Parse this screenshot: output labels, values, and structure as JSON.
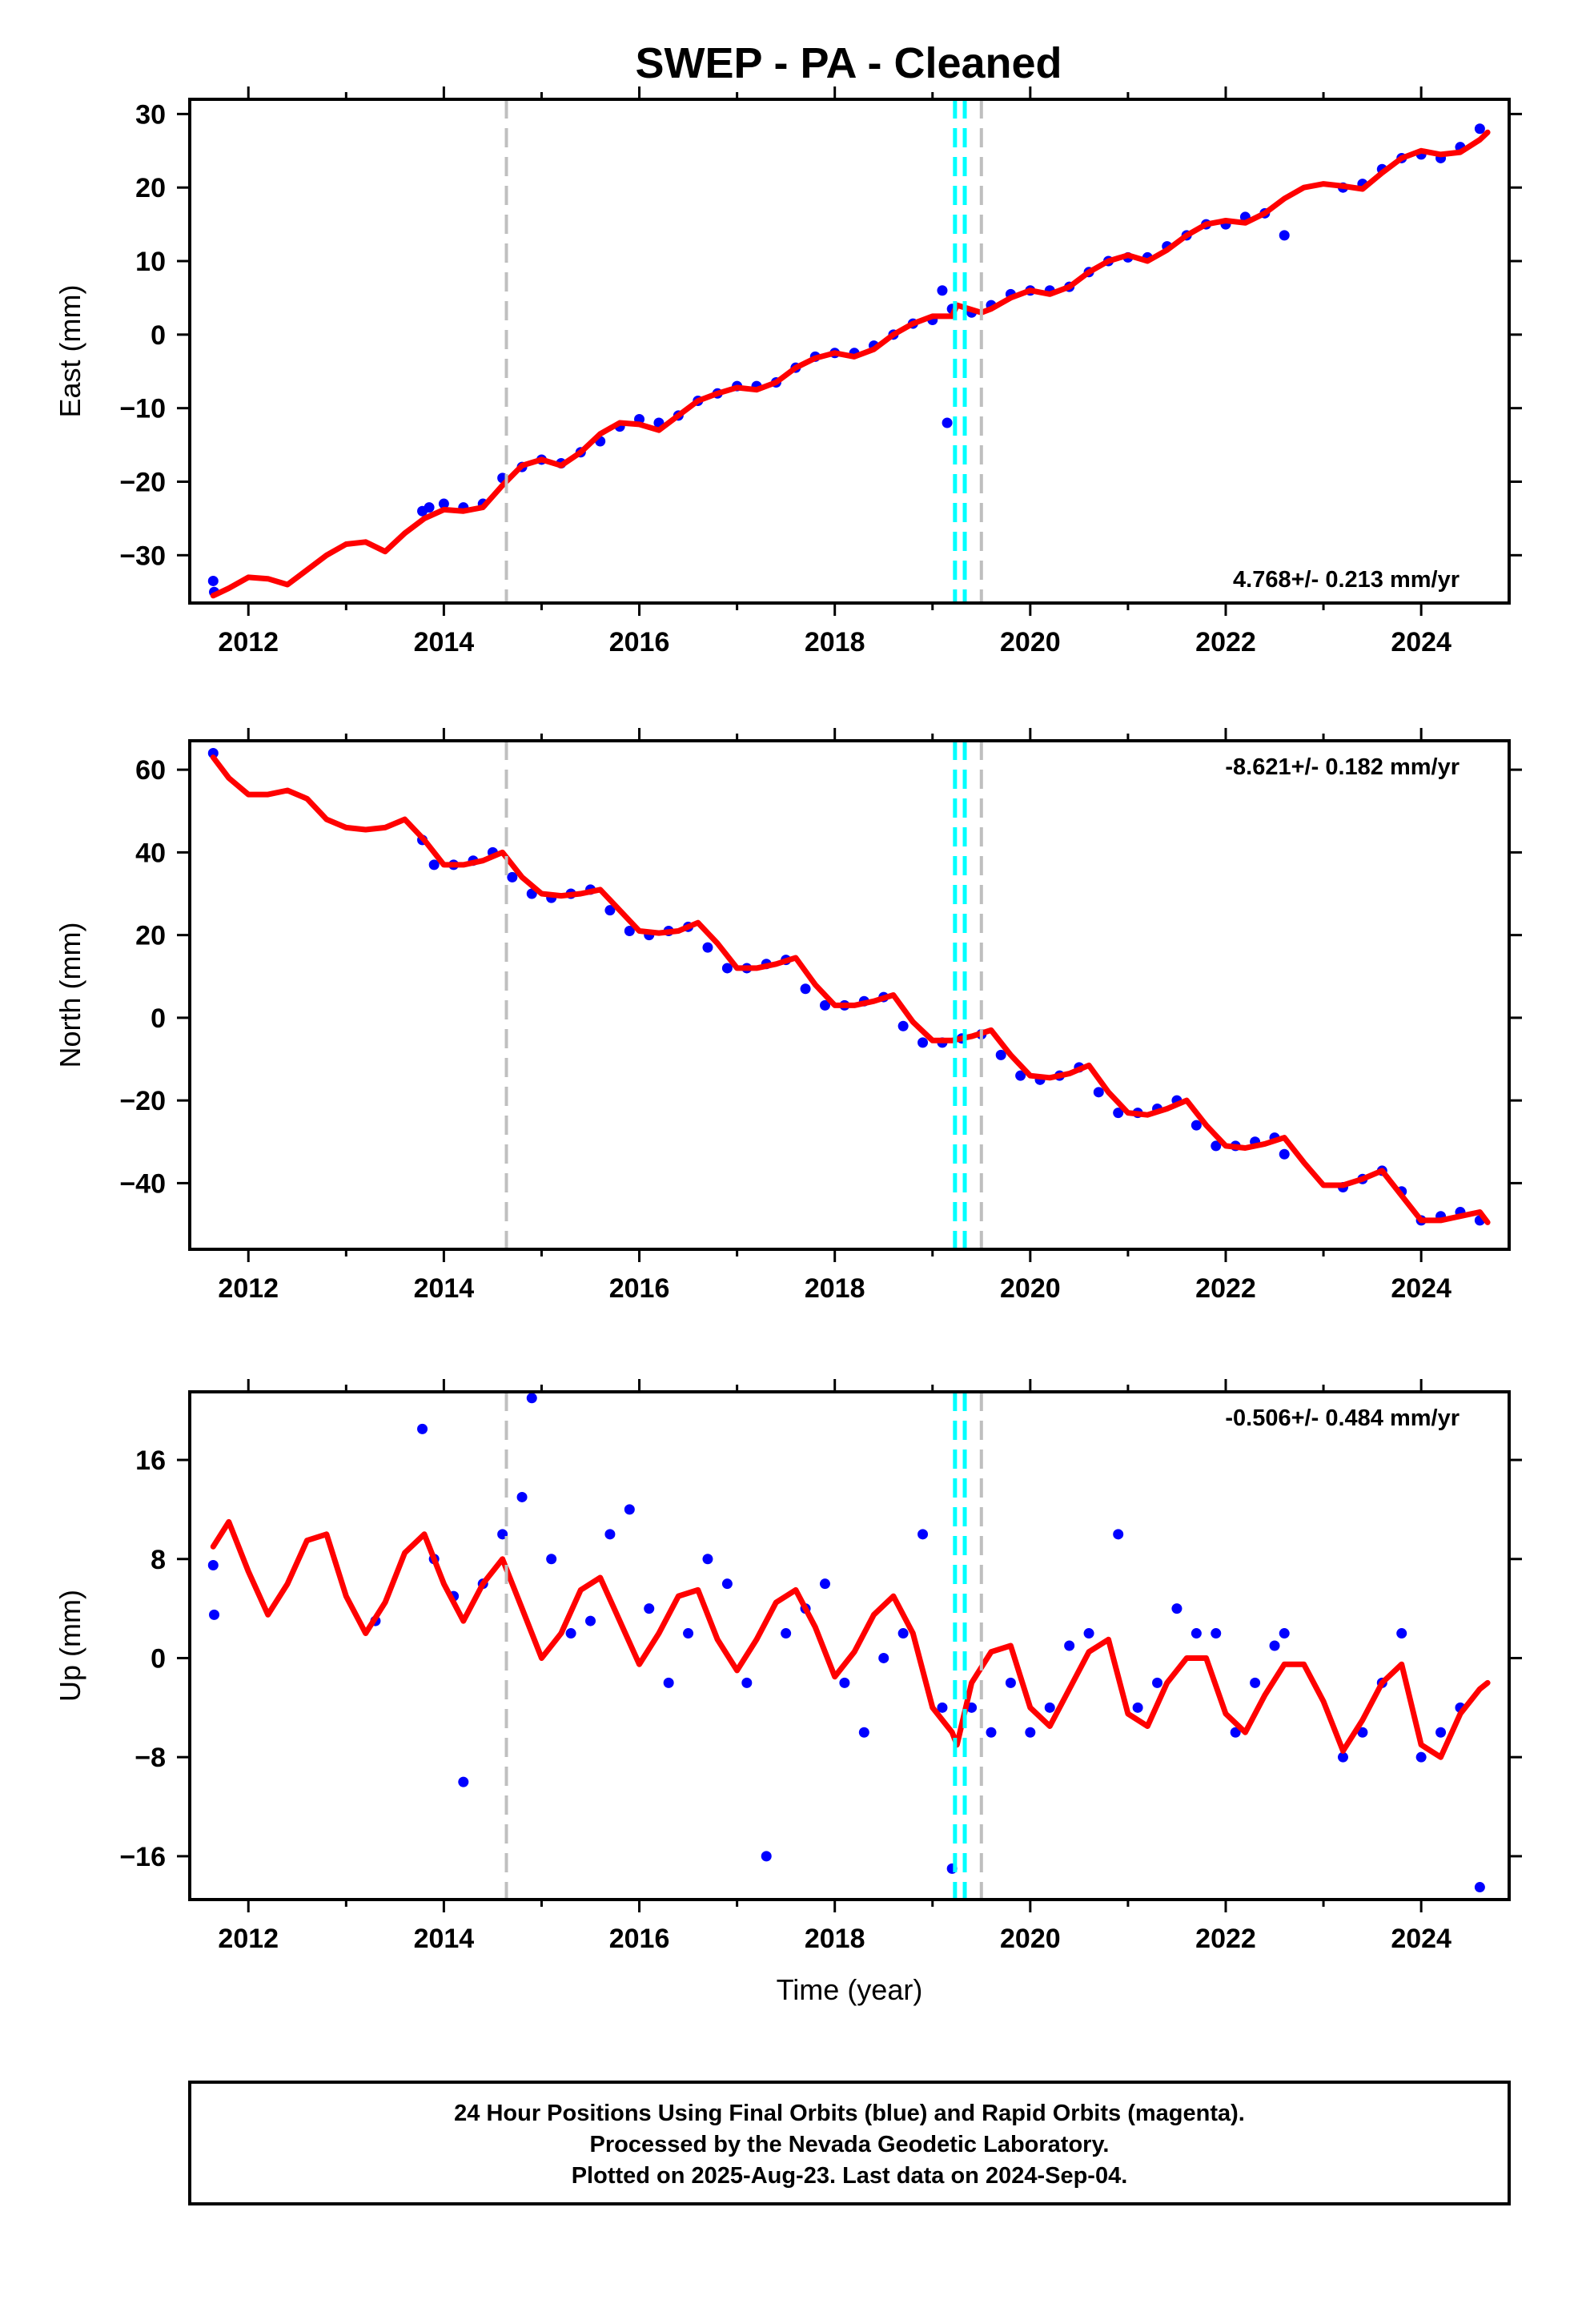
{
  "title": "SWEP  - PA - Cleaned",
  "footer": {
    "lines": [
      "24 Hour Positions Using Final Orbits (blue) and Rapid Orbits (magenta).",
      "Processed by the Nevada Geodetic Laboratory.",
      "Plotted on 2025-Aug-23. Last data on 2024-Sep-04."
    ]
  },
  "colors": {
    "data_points": "#0000ff",
    "model_curve": "#ff0000",
    "antenna_change": "#bfbfbf",
    "equipment_change": "#00ffff"
  },
  "chart_data": [
    {
      "type": "scatter",
      "ylabel": "East (mm)",
      "xlabel": "",
      "xlim": [
        2011.4,
        2024.9
      ],
      "ylim": [
        -36.5,
        32
      ],
      "x_ticks": [
        2012,
        2014,
        2016,
        2018,
        2020,
        2022,
        2024
      ],
      "y_ticks": [
        -30,
        -20,
        -10,
        0,
        10,
        20,
        30
      ],
      "rate_text": "4.768+/- 0.213 mm/yr",
      "rate_position": "bottom-right",
      "vlines_gray": [
        2014.64,
        2019.5
      ],
      "vlines_cyan": [
        2019.23,
        2019.33
      ],
      "series": [
        {
          "kind": "points",
          "x": [
            2011.64,
            2011.65,
            2013.78,
            2013.85,
            2014.0,
            2014.2,
            2014.4,
            2014.6,
            2014.8,
            2015.0,
            2015.2,
            2015.4,
            2015.6,
            2015.8,
            2016.0,
            2016.2,
            2016.4,
            2016.6,
            2016.8,
            2017.0,
            2017.2,
            2017.4,
            2017.6,
            2017.8,
            2018.0,
            2018.2,
            2018.4,
            2018.6,
            2018.8,
            2019.0,
            2019.1,
            2019.15,
            2019.2,
            2019.4,
            2019.6,
            2019.8,
            2020.0,
            2020.2,
            2020.4,
            2020.6,
            2020.8,
            2021.0,
            2021.2,
            2021.4,
            2021.6,
            2021.8,
            2022.0,
            2022.2,
            2022.4,
            2022.6,
            2023.2,
            2023.4,
            2023.6,
            2023.8,
            2024.0,
            2024.2,
            2024.4,
            2024.6
          ],
          "y": [
            -33.5,
            -35.0,
            -24.0,
            -23.5,
            -23.0,
            -23.5,
            -23.0,
            -19.5,
            -18.0,
            -17.0,
            -17.5,
            -16.0,
            -14.5,
            -12.5,
            -11.5,
            -12.0,
            -11.0,
            -9.0,
            -8.0,
            -7.0,
            -7.0,
            -6.5,
            -4.5,
            -3.0,
            -2.5,
            -2.5,
            -1.5,
            0.0,
            1.5,
            2.0,
            6.0,
            -12.0,
            3.5,
            3.0,
            4.0,
            5.5,
            6.0,
            6.0,
            6.5,
            8.5,
            10.0,
            10.5,
            10.5,
            12.0,
            13.5,
            15.0,
            15.0,
            16.0,
            16.5,
            13.5,
            20.0,
            20.5,
            22.5,
            24.0,
            24.5,
            24.0,
            25.5,
            28.0
          ]
        },
        {
          "kind": "model",
          "x": [
            2011.64,
            2011.8,
            2012.0,
            2012.2,
            2012.4,
            2012.6,
            2012.8,
            2013.0,
            2013.2,
            2013.4,
            2013.6,
            2013.8,
            2014.0,
            2014.2,
            2014.4,
            2014.6,
            2014.8,
            2015.0,
            2015.2,
            2015.4,
            2015.6,
            2015.8,
            2016.0,
            2016.2,
            2016.4,
            2016.6,
            2016.8,
            2017.0,
            2017.2,
            2017.4,
            2017.6,
            2017.8,
            2018.0,
            2018.2,
            2018.4,
            2018.6,
            2018.8,
            2019.0,
            2019.2,
            2019.25,
            2019.5,
            2019.6,
            2019.8,
            2020.0,
            2020.2,
            2020.4,
            2020.6,
            2020.8,
            2021.0,
            2021.2,
            2021.4,
            2021.6,
            2021.8,
            2022.0,
            2022.2,
            2022.4,
            2022.6,
            2022.8,
            2023.0,
            2023.2,
            2023.4,
            2023.6,
            2023.8,
            2024.0,
            2024.2,
            2024.4,
            2024.6,
            2024.68
          ],
          "y": [
            -35.5,
            -34.5,
            -33.0,
            -33.2,
            -34.0,
            -32.0,
            -30.0,
            -28.5,
            -28.2,
            -29.5,
            -27.0,
            -25.0,
            -23.8,
            -24.0,
            -23.5,
            -20.5,
            -17.8,
            -17.0,
            -17.8,
            -16.0,
            -13.5,
            -12.0,
            -12.2,
            -13.0,
            -11.0,
            -9.0,
            -8.0,
            -7.2,
            -7.5,
            -6.5,
            -4.5,
            -3.2,
            -2.5,
            -3.0,
            -2.0,
            0.0,
            1.5,
            2.5,
            2.5,
            4.0,
            3.0,
            3.5,
            5.0,
            6.0,
            5.5,
            6.5,
            8.5,
            10.0,
            10.8,
            10.0,
            11.5,
            13.5,
            15.0,
            15.5,
            15.2,
            16.5,
            18.5,
            20.0,
            20.5,
            20.2,
            19.8,
            22.0,
            24.0,
            25.0,
            24.5,
            24.8,
            26.5,
            27.5
          ]
        }
      ]
    },
    {
      "type": "scatter",
      "ylabel": "North (mm)",
      "xlabel": "",
      "xlim": [
        2011.4,
        2024.9
      ],
      "ylim": [
        -56,
        67
      ],
      "x_ticks": [
        2012,
        2014,
        2016,
        2018,
        2020,
        2022,
        2024
      ],
      "y_ticks": [
        -40,
        -20,
        0,
        20,
        40,
        60
      ],
      "rate_text": "-8.621+/- 0.182 mm/yr",
      "rate_position": "top-right",
      "vlines_gray": [
        2014.64,
        2019.5
      ],
      "vlines_cyan": [
        2019.23,
        2019.33
      ],
      "series": [
        {
          "kind": "points",
          "x": [
            2011.64,
            2013.78,
            2013.9,
            2014.1,
            2014.3,
            2014.5,
            2014.7,
            2014.9,
            2015.1,
            2015.3,
            2015.5,
            2015.7,
            2015.9,
            2016.1,
            2016.3,
            2016.5,
            2016.7,
            2016.9,
            2017.1,
            2017.3,
            2017.5,
            2017.7,
            2017.9,
            2018.1,
            2018.3,
            2018.5,
            2018.7,
            2018.9,
            2019.1,
            2019.3,
            2019.5,
            2019.7,
            2019.9,
            2020.1,
            2020.3,
            2020.5,
            2020.7,
            2020.9,
            2021.1,
            2021.3,
            2021.5,
            2021.7,
            2021.9,
            2022.1,
            2022.3,
            2022.5,
            2022.6,
            2023.2,
            2023.4,
            2023.6,
            2023.8,
            2024.0,
            2024.2,
            2024.4,
            2024.6
          ],
          "y": [
            64,
            43,
            37,
            37,
            38,
            40,
            34,
            30,
            29,
            30,
            31,
            26,
            21,
            20,
            21,
            22,
            17,
            12,
            12,
            13,
            14,
            7,
            3,
            3,
            4,
            5,
            -2,
            -6,
            -6,
            -5,
            -4,
            -9,
            -14,
            -15,
            -14,
            -12,
            -18,
            -23,
            -23,
            -22,
            -20,
            -26,
            -31,
            -31,
            -30,
            -29,
            -33,
            -41,
            -39,
            -37,
            -42,
            -49,
            -48,
            -47,
            -49
          ]
        },
        {
          "kind": "model",
          "x": [
            2011.64,
            2011.8,
            2012.0,
            2012.2,
            2012.4,
            2012.6,
            2012.8,
            2013.0,
            2013.2,
            2013.4,
            2013.6,
            2013.8,
            2014.0,
            2014.2,
            2014.4,
            2014.6,
            2014.8,
            2015.0,
            2015.2,
            2015.4,
            2015.6,
            2015.8,
            2016.0,
            2016.2,
            2016.4,
            2016.6,
            2016.8,
            2017.0,
            2017.2,
            2017.4,
            2017.6,
            2017.8,
            2018.0,
            2018.2,
            2018.4,
            2018.6,
            2018.8,
            2019.0,
            2019.2,
            2019.4,
            2019.6,
            2019.8,
            2020.0,
            2020.2,
            2020.4,
            2020.6,
            2020.8,
            2021.0,
            2021.2,
            2021.4,
            2021.6,
            2021.8,
            2022.0,
            2022.2,
            2022.4,
            2022.6,
            2022.8,
            2023.0,
            2023.2,
            2023.4,
            2023.6,
            2023.8,
            2024.0,
            2024.2,
            2024.4,
            2024.6,
            2024.68
          ],
          "y": [
            63,
            58,
            54,
            54,
            55,
            53,
            48,
            46,
            45.5,
            46,
            48,
            43,
            37,
            37,
            38,
            40,
            34,
            30,
            29.5,
            30,
            31,
            26,
            21,
            20.5,
            21,
            23,
            18,
            12,
            12,
            13,
            14.5,
            8,
            3,
            3,
            4,
            5.5,
            -1,
            -5.5,
            -5.5,
            -4.5,
            -3,
            -9,
            -14,
            -14.5,
            -13.5,
            -11.5,
            -18,
            -23,
            -23.5,
            -22,
            -20,
            -26,
            -31,
            -31.5,
            -30.5,
            -29,
            -35,
            -40.5,
            -40.5,
            -39,
            -37,
            -43,
            -49,
            -49,
            -48,
            -47,
            -49.5
          ]
        }
      ]
    },
    {
      "type": "scatter",
      "ylabel": "Up (mm)",
      "xlabel": "Time (year)",
      "xlim": [
        2011.4,
        2024.9
      ],
      "ylim": [
        -19.5,
        21.5
      ],
      "x_ticks": [
        2012,
        2014,
        2016,
        2018,
        2020,
        2022,
        2024
      ],
      "y_ticks": [
        -16,
        -8,
        0,
        8,
        16
      ],
      "rate_text": "-0.506+/- 0.484 mm/yr",
      "rate_position": "top-right",
      "vlines_gray": [
        2014.64,
        2019.5
      ],
      "vlines_cyan": [
        2019.23,
        2019.33
      ],
      "series": [
        {
          "kind": "points",
          "x": [
            2011.64,
            2011.65,
            2013.3,
            2013.78,
            2013.9,
            2014.1,
            2014.2,
            2014.4,
            2014.6,
            2014.8,
            2014.9,
            2015.1,
            2015.3,
            2015.5,
            2015.7,
            2015.9,
            2016.1,
            2016.3,
            2016.5,
            2016.7,
            2016.9,
            2017.1,
            2017.3,
            2017.5,
            2017.7,
            2017.9,
            2018.1,
            2018.3,
            2018.5,
            2018.7,
            2018.9,
            2019.1,
            2019.2,
            2019.4,
            2019.6,
            2019.8,
            2020.0,
            2020.2,
            2020.4,
            2020.6,
            2020.9,
            2021.1,
            2021.3,
            2021.5,
            2021.7,
            2021.9,
            2022.1,
            2022.3,
            2022.5,
            2022.6,
            2023.2,
            2023.4,
            2023.6,
            2023.8,
            2024.0,
            2024.2,
            2024.4,
            2024.6
          ],
          "y": [
            7.5,
            3.5,
            3.0,
            18.5,
            8.0,
            5.0,
            -10.0,
            6.0,
            10.0,
            13.0,
            21.0,
            8.0,
            2.0,
            3.0,
            10.0,
            12.0,
            4.0,
            -2.0,
            2.0,
            8.0,
            6.0,
            -2.0,
            -16.0,
            2.0,
            4.0,
            6.0,
            -2.0,
            -6.0,
            0.0,
            2.0,
            10.0,
            -4.0,
            -17.0,
            -4.0,
            -6.0,
            -2.0,
            -6.0,
            -4.0,
            1.0,
            2.0,
            10.0,
            -4.0,
            -2.0,
            4.0,
            2.0,
            2.0,
            -6.0,
            -2.0,
            1.0,
            2.0,
            -8.0,
            -6.0,
            -2.0,
            2.0,
            -8.0,
            -6.0,
            -4.0,
            -18.5
          ]
        },
        {
          "kind": "model",
          "x": [
            2011.64,
            2011.8,
            2012.0,
            2012.2,
            2012.4,
            2012.6,
            2012.8,
            2013.0,
            2013.2,
            2013.4,
            2013.6,
            2013.8,
            2014.0,
            2014.2,
            2014.4,
            2014.6,
            2014.8,
            2015.0,
            2015.2,
            2015.4,
            2015.6,
            2015.8,
            2016.0,
            2016.2,
            2016.4,
            2016.6,
            2016.8,
            2017.0,
            2017.2,
            2017.4,
            2017.6,
            2017.8,
            2018.0,
            2018.2,
            2018.4,
            2018.6,
            2018.8,
            2019.0,
            2019.2,
            2019.25,
            2019.4,
            2019.6,
            2019.8,
            2020.0,
            2020.2,
            2020.4,
            2020.6,
            2020.8,
            2021.0,
            2021.2,
            2021.4,
            2021.6,
            2021.8,
            2022.0,
            2022.2,
            2022.4,
            2022.6,
            2022.8,
            2023.0,
            2023.2,
            2023.4,
            2023.6,
            2023.8,
            2024.0,
            2024.2,
            2024.4,
            2024.6,
            2024.68
          ],
          "y": [
            9.0,
            11.0,
            7.0,
            3.5,
            6.0,
            9.5,
            10.0,
            5.0,
            2.0,
            4.5,
            8.5,
            10.0,
            6.0,
            3.0,
            6.0,
            8.0,
            4.0,
            0.0,
            2.0,
            5.5,
            6.5,
            3.0,
            -0.5,
            2.0,
            5.0,
            5.5,
            1.5,
            -1.0,
            1.5,
            4.5,
            5.5,
            2.5,
            -1.5,
            0.5,
            3.5,
            5.0,
            2.0,
            -4.0,
            -6.0,
            -7.0,
            -2.0,
            0.5,
            1.0,
            -4.0,
            -5.5,
            -2.5,
            0.5,
            1.5,
            -4.5,
            -5.5,
            -2.0,
            0.0,
            0.0,
            -4.5,
            -6.0,
            -3.0,
            -0.5,
            -0.5,
            -3.5,
            -7.5,
            -5.0,
            -2.0,
            -0.5,
            -7.0,
            -8.0,
            -4.5,
            -2.5,
            -2.0
          ]
        }
      ]
    }
  ]
}
